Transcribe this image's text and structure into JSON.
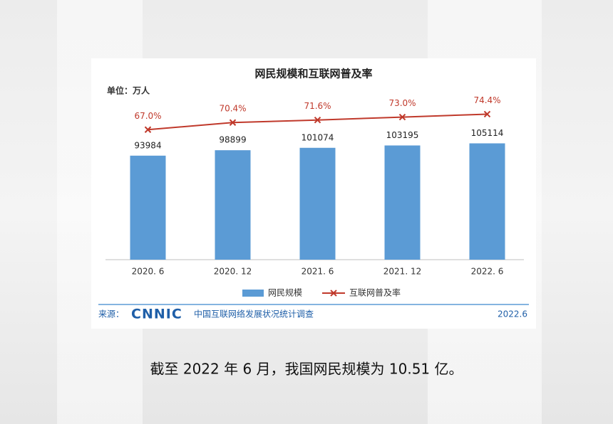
{
  "chart_data": {
    "type": "bar",
    "title": "网民规模和互联网普及率",
    "unit_label": "单位：万人",
    "categories": [
      "2020. 6",
      "2020. 12",
      "2021. 6",
      "2021. 12",
      "2022. 6"
    ],
    "series": [
      {
        "name": "网民规模",
        "color": "#5b9bd5",
        "values": [
          93984,
          98899,
          101074,
          103195,
          105114
        ]
      },
      {
        "name": "互联网普及率",
        "color": "#c0392b",
        "axis": "y2",
        "values": [
          67.0,
          70.4,
          71.6,
          73.0,
          74.4
        ],
        "value_labels": [
          "67.0%",
          "70.4%",
          "71.6%",
          "73.0%",
          "74.4%"
        ]
      }
    ],
    "ylim": [
      0,
      180000
    ],
    "y2lim": [
      5,
      100
    ],
    "source_label": "来源：",
    "logo": "CNNIC",
    "source": "中国互联网络发展状况统计调查",
    "date": "2022.6"
  },
  "caption": "截至 2022 年 6 月，我国网民规模为 10.51 亿。"
}
